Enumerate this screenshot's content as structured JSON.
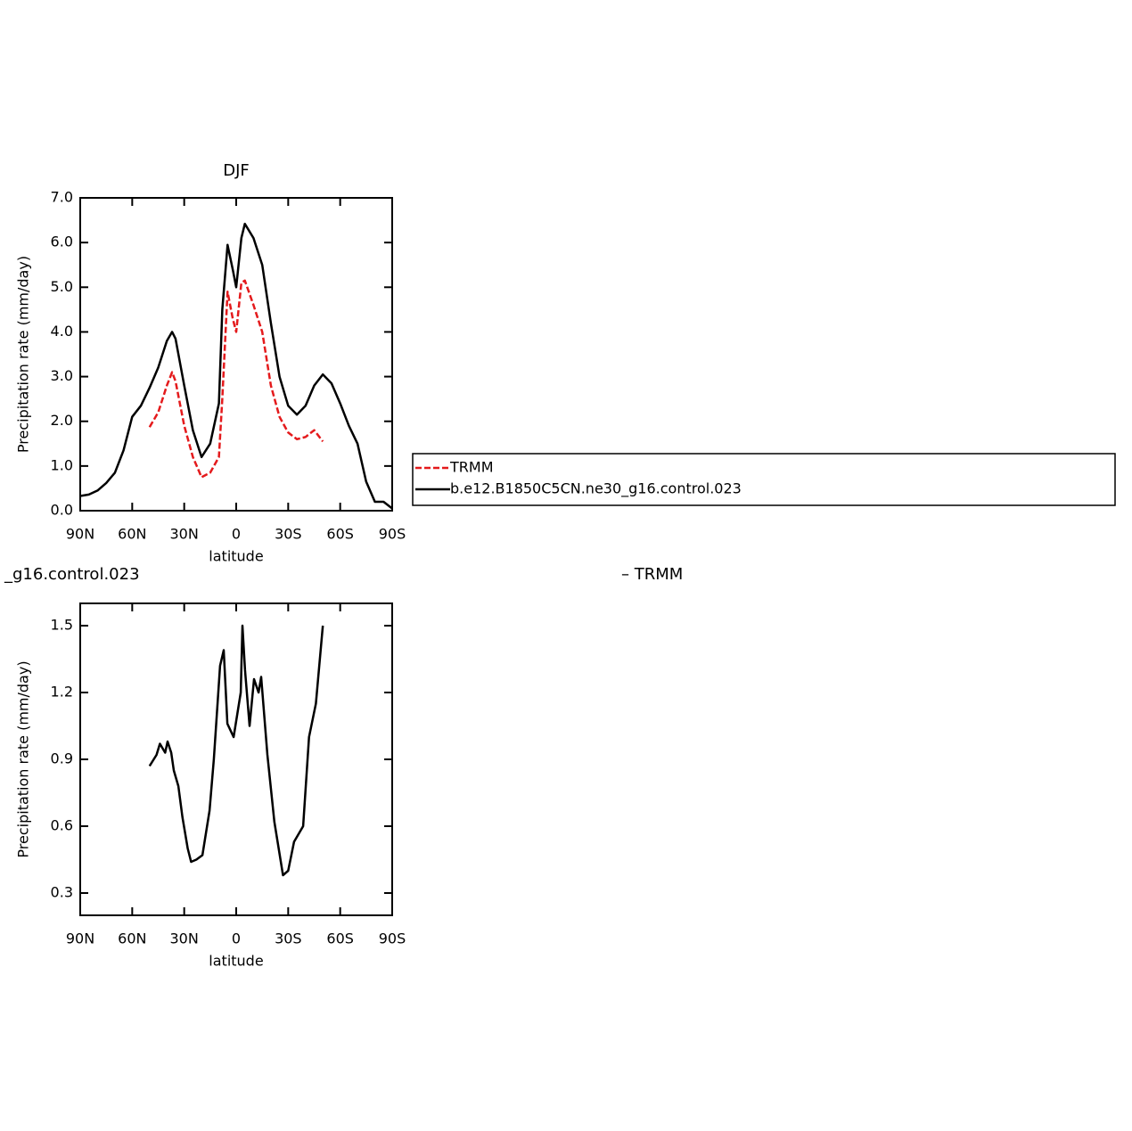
{
  "chart_data": [
    {
      "type": "line",
      "title": "DJF",
      "xlabel": "latitude",
      "ylabel": "Precipitation rate (mm/day)",
      "x": [
        90,
        85,
        80,
        75,
        70,
        65,
        60,
        55,
        50,
        45,
        40,
        37,
        35,
        30,
        25,
        20,
        15,
        10,
        8,
        5,
        2,
        0,
        -3,
        -5,
        -10,
        -15,
        -20,
        -25,
        -30,
        -35,
        -40,
        -45,
        -50,
        -55,
        -60,
        -65,
        -70,
        -75,
        -80,
        -85,
        -90
      ],
      "series": [
        {
          "name": "TRMM",
          "color": "#e41a1c",
          "dashed": true,
          "values": [
            null,
            null,
            null,
            null,
            null,
            null,
            null,
            null,
            1.87,
            2.2,
            2.8,
            3.1,
            2.9,
            1.9,
            1.2,
            0.75,
            0.85,
            1.2,
            2.5,
            4.9,
            4.3,
            4.0,
            5.1,
            5.15,
            4.6,
            4.0,
            2.8,
            2.1,
            1.75,
            1.6,
            1.65,
            1.8,
            1.55,
            null,
            null,
            null,
            null,
            null,
            null,
            null,
            null
          ]
        },
        {
          "name": "b.e12.B1850C5CN.ne30_g16.control.023",
          "color": "#000000",
          "dashed": false,
          "values": [
            0.33,
            0.36,
            0.45,
            0.62,
            0.85,
            1.35,
            2.1,
            2.35,
            2.75,
            3.2,
            3.8,
            4.0,
            3.85,
            2.8,
            1.8,
            1.2,
            1.5,
            2.4,
            4.5,
            5.95,
            5.4,
            5.0,
            6.1,
            6.42,
            6.1,
            5.5,
            4.2,
            3.0,
            2.35,
            2.15,
            2.35,
            2.8,
            3.05,
            2.85,
            2.4,
            1.9,
            1.5,
            0.65,
            0.2,
            0.2,
            0.05
          ]
        }
      ],
      "xlim": [
        90,
        -90
      ],
      "xticks": [
        {
          "value": 90,
          "label": "90N"
        },
        {
          "value": 60,
          "label": "60N"
        },
        {
          "value": 30,
          "label": "30N"
        },
        0,
        {
          "value": -30,
          "label": "30S"
        },
        {
          "value": -60,
          "label": "60S"
        },
        {
          "value": -90,
          "label": "90S"
        }
      ],
      "ylim": [
        0,
        7
      ],
      "yticks": [
        {
          "value": 0,
          "label": "0.0"
        },
        {
          "value": 1,
          "label": "1.0"
        },
        {
          "value": 2,
          "label": "2.0"
        },
        {
          "value": 3,
          "label": "3.0"
        },
        {
          "value": 4,
          "label": "4.0"
        },
        {
          "value": 5,
          "label": "5.0"
        },
        {
          "value": 6,
          "label": "6.0"
        },
        {
          "value": 7,
          "label": "7.0"
        }
      ],
      "legend": true
    },
    {
      "type": "line",
      "title_parts": [
        "_g16.control.023",
        "– TRMM"
      ],
      "xlabel": "latitude",
      "ylabel": "Precipitation rate (mm/day)",
      "x": [
        50,
        46,
        44,
        41,
        39.6,
        37.5,
        36,
        33.4,
        31,
        28,
        26,
        23,
        19.5,
        15.4,
        12.9,
        9.3,
        7.2,
        5.1,
        1.5,
        -2.6,
        -3.6,
        -5.1,
        -7.7,
        -10.3,
        -12.9,
        -14.4,
        -18,
        -22,
        -27,
        -30,
        -33.4,
        -38.6,
        -42,
        -46,
        -50
      ],
      "series": [
        {
          "color": "#000000",
          "dashed": false,
          "values": [
            0.87,
            0.92,
            0.97,
            0.93,
            0.98,
            0.93,
            0.85,
            0.78,
            0.64,
            0.5,
            0.44,
            0.45,
            0.47,
            0.67,
            0.9,
            1.32,
            1.39,
            1.06,
            1.0,
            1.2,
            1.5,
            1.3,
            1.05,
            1.26,
            1.2,
            1.27,
            0.92,
            0.62,
            0.38,
            0.4,
            0.53,
            0.6,
            1.0,
            1.15,
            1.5
          ]
        }
      ],
      "xlim": [
        90,
        -90
      ],
      "xticks": [
        {
          "value": 90,
          "label": "90N"
        },
        {
          "value": 60,
          "label": "60N"
        },
        {
          "value": 30,
          "label": "30N"
        },
        0,
        {
          "value": -30,
          "label": "30S"
        },
        {
          "value": -60,
          "label": "60S"
        },
        {
          "value": -90,
          "label": "90S"
        }
      ],
      "ylim": [
        0.2,
        1.6
      ],
      "yticks": [
        0.3,
        0.6,
        0.9,
        1.2,
        1.5
      ],
      "legend": false
    }
  ]
}
